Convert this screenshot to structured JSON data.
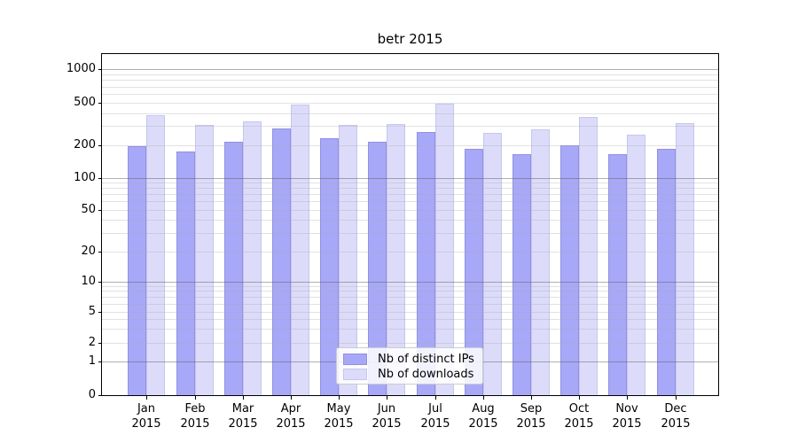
{
  "title": "betr 2015",
  "legend": {
    "items": [
      {
        "label": "Nb of distinct IPs",
        "color": "#a8a8f8",
        "edge": "#9191e0"
      },
      {
        "label": "Nb of downloads",
        "color": "#dcdcfa",
        "edge": "#c6c6ee"
      }
    ]
  },
  "axis": {
    "y_ticks": [
      0,
      1,
      2,
      5,
      10,
      20,
      50,
      100,
      200,
      500,
      1000
    ],
    "y_tick_labels": [
      "0",
      "1",
      "2",
      "5",
      "10",
      "20",
      "50",
      "100",
      "200",
      "500",
      "1000"
    ],
    "x_months": [
      "Jan",
      "Feb",
      "Mar",
      "Apr",
      "May",
      "Jun",
      "Jul",
      "Aug",
      "Sep",
      "Oct",
      "Nov",
      "Dec"
    ],
    "x_year": "2015"
  },
  "chart_data": {
    "type": "bar",
    "title": "betr 2015",
    "categories": [
      "Jan 2015",
      "Feb 2015",
      "Mar 2015",
      "Apr 2015",
      "May 2015",
      "Jun 2015",
      "Jul 2015",
      "Aug 2015",
      "Sep 2015",
      "Oct 2015",
      "Nov 2015",
      "Dec 2015"
    ],
    "series": [
      {
        "name": "Nb of distinct IPs",
        "color": "#a8a8f8",
        "values": [
          195,
          175,
          213,
          285,
          229,
          213,
          264,
          184,
          166,
          200,
          164,
          184
        ]
      },
      {
        "name": "Nb of downloads",
        "color": "#dcdcfa",
        "values": [
          380,
          310,
          333,
          480,
          308,
          313,
          490,
          258,
          280,
          367,
          249,
          320
        ]
      }
    ],
    "yscale": "symlog",
    "y_ticks": [
      0,
      1,
      2,
      5,
      10,
      20,
      50,
      100,
      200,
      500,
      1000
    ],
    "ylim": [
      0,
      1200
    ],
    "grid": true,
    "legend_position": "lower center"
  }
}
